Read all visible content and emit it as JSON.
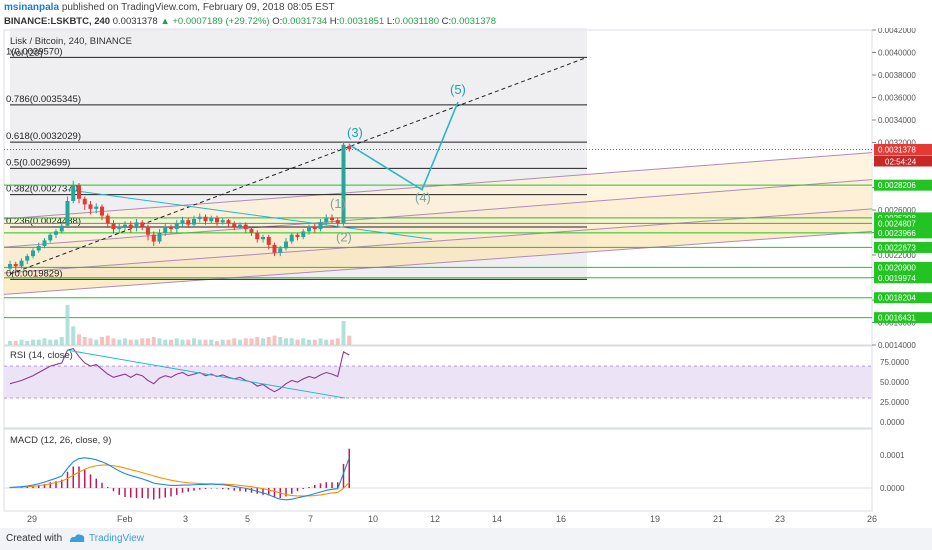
{
  "header": {
    "author": "msinanpala",
    "published": "published on TradingView.com, February 09, 2018 08:05 EST",
    "symbol": "BINANCE:LSKBTC, 240",
    "last": "0.0031378",
    "change": "+0.0007189 (+29.72%)",
    "open_label": "O:",
    "open": "0.0031734",
    "high_label": "H:",
    "high": "0.0031851",
    "low_label": "L:",
    "low": "0.0031180",
    "close_label": "C:",
    "close": "0.0031378"
  },
  "chart_data": [
    {
      "type": "candlestick",
      "title": "Lisk / Bitcoin, 240, BINANCE",
      "volume_label": "Vol (20)",
      "x_ticks": [
        "29",
        "Feb",
        "3",
        "5",
        "7",
        "10",
        "12",
        "14",
        "16",
        "19",
        "21",
        "23",
        "26"
      ],
      "y_ticks": [
        "0.0042000",
        "0.0040000",
        "0.0038000",
        "0.0036000",
        "0.0034000",
        "0.0032000",
        "0.0028000",
        "0.0026000",
        "0.0024000",
        "0.0022000",
        "0.0020000",
        "0.0018000",
        "0.0016000",
        "0.0014000"
      ],
      "ylim": [
        0.0014,
        0.0042
      ],
      "price_tags": [
        {
          "value": 0.0031378,
          "label": "0.0031378",
          "color": "#e53935"
        },
        {
          "value": 0.0028206,
          "label": "0.0028206",
          "color": "#22c322"
        },
        {
          "value": 0.0025298,
          "label": "0.0025298",
          "color": "#22c322"
        },
        {
          "value": 0.0024807,
          "label": "0.0024807",
          "color": "#22c322"
        },
        {
          "value": 0.0023966,
          "label": "0.0023966",
          "color": "#22c322"
        },
        {
          "value": 0.0022673,
          "label": "0.0022673",
          "color": "#22c322"
        },
        {
          "value": 0.00209,
          "label": "0.0020900",
          "color": "#22c322"
        },
        {
          "value": 0.0019974,
          "label": "0.0019974",
          "color": "#22c322"
        },
        {
          "value": 0.0018204,
          "label": "0.0018204",
          "color": "#22c322"
        },
        {
          "value": 0.0016431,
          "label": "0.0016431",
          "color": "#22c322"
        }
      ],
      "countdown": "02:54:24",
      "fib_levels": [
        {
          "label": "1(0.0039570)",
          "value": 0.003957
        },
        {
          "label": "0.786(0.0035345)",
          "value": 0.0035345
        },
        {
          "label": "0.618(0.0032029)",
          "value": 0.0032029
        },
        {
          "label": "0.5(0.0029699)",
          "value": 0.0029699
        },
        {
          "label": "0.382(0.0027370)",
          "value": 0.002737
        },
        {
          "label": "0.236(0.0024488)",
          "value": 0.0024488
        },
        {
          "label": "0(0.0019829)",
          "value": 0.0019829
        }
      ],
      "wave_labels": [
        "(1)",
        "(2)",
        "(3)",
        "(4)",
        "(5)"
      ],
      "candles": [
        {
          "o": 0.00208,
          "c": 0.00212,
          "h": 0.00215,
          "l": 0.00205
        },
        {
          "o": 0.00212,
          "c": 0.0021,
          "h": 0.00214,
          "l": 0.00206
        },
        {
          "o": 0.0021,
          "c": 0.00215,
          "h": 0.00217,
          "l": 0.00208
        },
        {
          "o": 0.00215,
          "c": 0.00219,
          "h": 0.00221,
          "l": 0.00212
        },
        {
          "o": 0.00219,
          "c": 0.00224,
          "h": 0.00226,
          "l": 0.00217
        },
        {
          "o": 0.00224,
          "c": 0.00228,
          "h": 0.00231,
          "l": 0.00222
        },
        {
          "o": 0.00228,
          "c": 0.00233,
          "h": 0.00235,
          "l": 0.00226
        },
        {
          "o": 0.00233,
          "c": 0.00238,
          "h": 0.0024,
          "l": 0.00231
        },
        {
          "o": 0.00238,
          "c": 0.00241,
          "h": 0.00243,
          "l": 0.00235
        },
        {
          "o": 0.00241,
          "c": 0.00246,
          "h": 0.00249,
          "l": 0.00239
        },
        {
          "o": 0.00246,
          "c": 0.00268,
          "h": 0.00272,
          "l": 0.00244
        },
        {
          "o": 0.00268,
          "c": 0.00282,
          "h": 0.00286,
          "l": 0.00266
        },
        {
          "o": 0.00282,
          "c": 0.0027,
          "h": 0.00284,
          "l": 0.00266
        },
        {
          "o": 0.0027,
          "c": 0.00265,
          "h": 0.00272,
          "l": 0.0026
        },
        {
          "o": 0.00265,
          "c": 0.00261,
          "h": 0.00268,
          "l": 0.00256
        },
        {
          "o": 0.00261,
          "c": 0.00263,
          "h": 0.00266,
          "l": 0.00257
        },
        {
          "o": 0.00263,
          "c": 0.00255,
          "h": 0.00265,
          "l": 0.00251
        },
        {
          "o": 0.00255,
          "c": 0.00248,
          "h": 0.00257,
          "l": 0.00244
        },
        {
          "o": 0.00248,
          "c": 0.00243,
          "h": 0.00251,
          "l": 0.00239
        },
        {
          "o": 0.00243,
          "c": 0.00245,
          "h": 0.00248,
          "l": 0.0024
        },
        {
          "o": 0.00245,
          "c": 0.00247,
          "h": 0.0025,
          "l": 0.00242
        },
        {
          "o": 0.00247,
          "c": 0.00244,
          "h": 0.0025,
          "l": 0.0024
        },
        {
          "o": 0.00244,
          "c": 0.00249,
          "h": 0.00252,
          "l": 0.00241
        },
        {
          "o": 0.00249,
          "c": 0.00245,
          "h": 0.00251,
          "l": 0.00242
        },
        {
          "o": 0.00245,
          "c": 0.00238,
          "h": 0.00247,
          "l": 0.00233
        },
        {
          "o": 0.00238,
          "c": 0.00232,
          "h": 0.00241,
          "l": 0.00228
        },
        {
          "o": 0.00232,
          "c": 0.0024,
          "h": 0.00243,
          "l": 0.0023
        },
        {
          "o": 0.0024,
          "c": 0.00245,
          "h": 0.00248,
          "l": 0.00237
        },
        {
          "o": 0.00245,
          "c": 0.00243,
          "h": 0.00247,
          "l": 0.0024
        },
        {
          "o": 0.00243,
          "c": 0.00248,
          "h": 0.00251,
          "l": 0.0024
        },
        {
          "o": 0.00248,
          "c": 0.00251,
          "h": 0.00254,
          "l": 0.00245
        },
        {
          "o": 0.00251,
          "c": 0.00247,
          "h": 0.00253,
          "l": 0.00244
        },
        {
          "o": 0.00247,
          "c": 0.00252,
          "h": 0.00255,
          "l": 0.00245
        },
        {
          "o": 0.00252,
          "c": 0.00254,
          "h": 0.00257,
          "l": 0.00249
        },
        {
          "o": 0.00254,
          "c": 0.0025,
          "h": 0.00256,
          "l": 0.00247
        },
        {
          "o": 0.0025,
          "c": 0.00253,
          "h": 0.00255,
          "l": 0.00248
        },
        {
          "o": 0.00253,
          "c": 0.00249,
          "h": 0.00255,
          "l": 0.00246
        },
        {
          "o": 0.00249,
          "c": 0.00251,
          "h": 0.00253,
          "l": 0.00247
        },
        {
          "o": 0.00251,
          "c": 0.00248,
          "h": 0.00252,
          "l": 0.00245
        },
        {
          "o": 0.00248,
          "c": 0.00245,
          "h": 0.0025,
          "l": 0.00242
        },
        {
          "o": 0.00245,
          "c": 0.00247,
          "h": 0.00249,
          "l": 0.00243
        },
        {
          "o": 0.00247,
          "c": 0.00243,
          "h": 0.00249,
          "l": 0.0024
        },
        {
          "o": 0.00243,
          "c": 0.0024,
          "h": 0.00245,
          "l": 0.00237
        },
        {
          "o": 0.0024,
          "c": 0.00234,
          "h": 0.00242,
          "l": 0.00231
        },
        {
          "o": 0.00234,
          "c": 0.00236,
          "h": 0.00238,
          "l": 0.00231
        },
        {
          "o": 0.00236,
          "c": 0.00229,
          "h": 0.00238,
          "l": 0.00225
        },
        {
          "o": 0.00229,
          "c": 0.00222,
          "h": 0.00231,
          "l": 0.00219
        },
        {
          "o": 0.00222,
          "c": 0.00226,
          "h": 0.00228,
          "l": 0.00219
        },
        {
          "o": 0.00226,
          "c": 0.00232,
          "h": 0.00235,
          "l": 0.00224
        },
        {
          "o": 0.00232,
          "c": 0.00238,
          "h": 0.0024,
          "l": 0.0023
        },
        {
          "o": 0.00238,
          "c": 0.00236,
          "h": 0.0024,
          "l": 0.00233
        },
        {
          "o": 0.00236,
          "c": 0.00241,
          "h": 0.00243,
          "l": 0.00234
        },
        {
          "o": 0.00241,
          "c": 0.00245,
          "h": 0.00247,
          "l": 0.00238
        },
        {
          "o": 0.00245,
          "c": 0.00243,
          "h": 0.00248,
          "l": 0.0024
        },
        {
          "o": 0.00243,
          "c": 0.00249,
          "h": 0.00252,
          "l": 0.00241
        },
        {
          "o": 0.00249,
          "c": 0.00253,
          "h": 0.00256,
          "l": 0.00246
        },
        {
          "o": 0.00253,
          "c": 0.00251,
          "h": 0.00256,
          "l": 0.00248
        },
        {
          "o": 0.00251,
          "c": 0.00248,
          "h": 0.00253,
          "l": 0.00245
        },
        {
          "o": 0.00248,
          "c": 0.00318,
          "h": 0.00321,
          "l": 0.00246
        },
        {
          "o": 0.00317,
          "c": 0.00314,
          "h": 0.00319,
          "l": 0.00312
        }
      ],
      "volume": [
        3,
        3,
        4,
        3,
        4,
        4,
        5,
        4,
        4,
        6,
        30,
        14,
        8,
        6,
        5,
        4,
        6,
        7,
        5,
        4,
        5,
        4,
        4,
        5,
        5,
        6,
        5,
        4,
        4,
        5,
        4,
        4,
        5,
        4,
        4,
        4,
        3,
        4,
        4,
        5,
        4,
        5,
        5,
        6,
        5,
        6,
        7,
        6,
        5,
        5,
        4,
        5,
        4,
        4,
        5,
        4,
        4,
        5,
        18,
        7
      ]
    },
    {
      "type": "line",
      "title": "RSI (14, close)",
      "y_ticks": [
        "75.0000",
        "50.0000",
        "25.0000",
        "0.0000"
      ],
      "ylim": [
        0,
        100
      ],
      "bands": [
        30,
        70
      ],
      "values": [
        48,
        50,
        52,
        55,
        58,
        62,
        66,
        70,
        72,
        74,
        90,
        92,
        82,
        74,
        70,
        72,
        66,
        60,
        56,
        58,
        60,
        56,
        60,
        58,
        52,
        48,
        55,
        58,
        56,
        60,
        62,
        58,
        60,
        62,
        58,
        60,
        57,
        59,
        56,
        54,
        56,
        52,
        50,
        45,
        47,
        42,
        38,
        42,
        48,
        52,
        50,
        54,
        57,
        55,
        59,
        62,
        60,
        57,
        88,
        84
      ]
    },
    {
      "type": "macd",
      "title": "MACD (12, 26, close, 9)",
      "y_ticks": [
        "0.0001",
        "0.0000"
      ],
      "ylim": [
        -7e-05,
        0.00018
      ],
      "macd": [
        2e-06,
        3e-06,
        4e-06,
        6e-06,
        9e-06,
        1.3e-05,
        1.8e-05,
        2.4e-05,
        3e-05,
        3.7e-05,
        6e-05,
        8e-05,
        9e-05,
        9.2e-05,
        9e-05,
        8.6e-05,
        8e-05,
        7.2e-05,
        6.2e-05,
        5.2e-05,
        4.4e-05,
        3.8e-05,
        3.3e-05,
        2.8e-05,
        2.2e-05,
        1.5e-05,
        1.2e-05,
        1e-05,
        8e-06,
        8e-06,
        9e-06,
        9e-06,
        1e-05,
        1.1e-05,
        1.1e-05,
        1.2e-05,
        1.1e-05,
        1e-05,
        8e-06,
        5e-06,
        2e-06,
        -1e-06,
        -5e-06,
        -1e-05,
        -1.5e-05,
        -2e-05,
        -2.8e-05,
        -3.4e-05,
        -3.6e-05,
        -3.4e-05,
        -3e-05,
        -2.6e-05,
        -2.2e-05,
        -1.7e-05,
        -1.2e-05,
        -7e-06,
        -4e-06,
        -2e-06,
        4.5e-05,
        9.2e-05
      ],
      "signal": [
        1e-06,
        2e-06,
        3e-06,
        4e-06,
        5e-06,
        7e-06,
        1e-05,
        1.3e-05,
        1.7e-05,
        2.1e-05,
        2.9e-05,
        3.9e-05,
        4.9e-05,
        5.7e-05,
        6.4e-05,
        6.8e-05,
        7e-05,
        7e-05,
        6.8e-05,
        6.5e-05,
        6.1e-05,
        5.6e-05,
        5.2e-05,
        4.7e-05,
        4.2e-05,
        3.7e-05,
        3.2e-05,
        2.8e-05,
        2.4e-05,
        2.1e-05,
        1.8e-05,
        1.6e-05,
        1.5e-05,
        1.4e-05,
        1.3e-05,
        1.3e-05,
        1.2e-05,
        1.2e-05,
        1.1e-05,
        1e-05,
        8e-06,
        6e-06,
        4e-06,
        1e-06,
        -2e-06,
        -6e-06,
        -1e-05,
        -1.5e-05,
        -2e-05,
        -2.3e-05,
        -2.4e-05,
        -2.4e-05,
        -2.4e-05,
        -2.3e-05,
        -2.1e-05,
        -1.8e-05,
        -1.5e-05,
        -1.3e-05,
        -1e-06,
        1.7e-05
      ]
    }
  ],
  "footer": {
    "created_with": "Created with",
    "brand": "TradingView"
  },
  "colors": {
    "up": "#26a69a",
    "down": "#e53935",
    "fib": "#000000",
    "channel": "#b08bb5",
    "support": "#22c322",
    "wave": "#24b8c8",
    "rsi": "#8e3a8e",
    "macd": "#1e88e5",
    "signal": "#ff8f00"
  }
}
